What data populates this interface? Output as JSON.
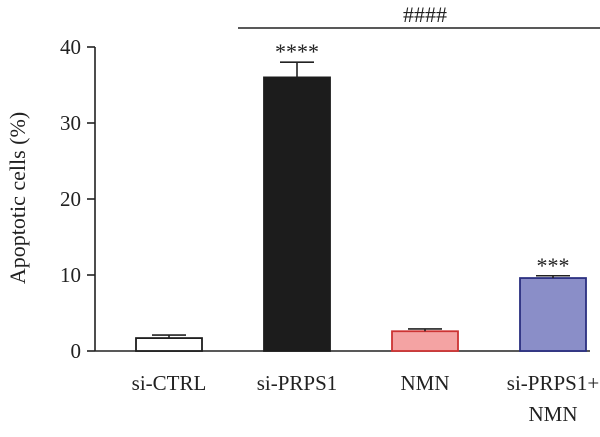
{
  "chart_data": {
    "type": "bar",
    "title": "",
    "xlabel": "",
    "ylabel": "Apoptotic cells (%)",
    "ylim": [
      0,
      40
    ],
    "yticks": [
      0,
      10,
      20,
      30,
      40
    ],
    "grid": false,
    "categories": [
      [
        "si-CTRL"
      ],
      [
        "si-PRPS1"
      ],
      [
        "NMN"
      ],
      [
        "si-PRPS1+",
        "NMN"
      ]
    ],
    "values": [
      1.7,
      36.0,
      2.6,
      9.6
    ],
    "errors": [
      0.4,
      2.0,
      0.3,
      0.3
    ],
    "significance": [
      "",
      "****",
      "",
      "***"
    ],
    "bar_colors": [
      "#ffffff",
      "#1c1c1c",
      "#f4a3a3",
      "#8a8ec8"
    ],
    "bar_edge_colors": [
      "#1c1c1c",
      "#1c1c1c",
      "#cc3333",
      "#2a2f80"
    ],
    "comparison": {
      "from": 1,
      "to": 3,
      "label": "####"
    }
  }
}
